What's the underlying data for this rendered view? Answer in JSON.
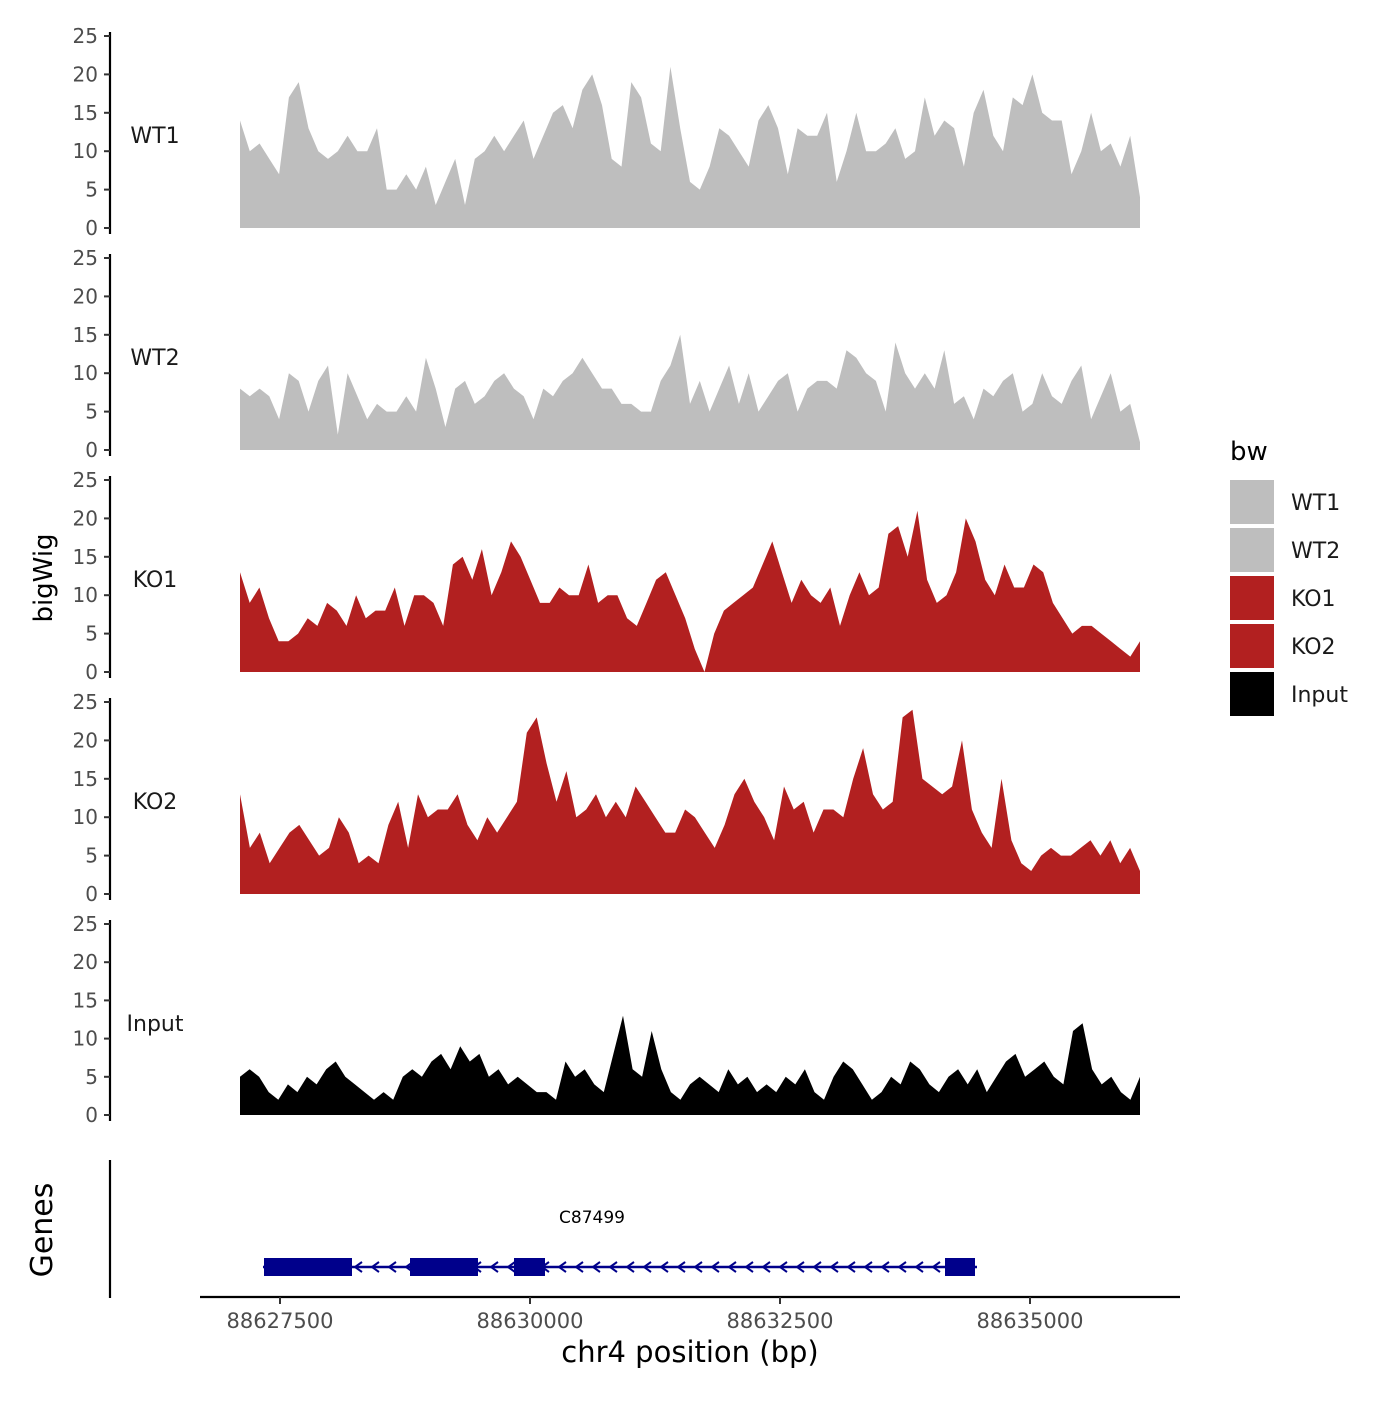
{
  "chart_data": {
    "type": "area",
    "y_axis_label": "bigWig",
    "x_axis_label": "chr4 position (bp)",
    "gene_track_label": "Genes",
    "legend_title": "bw",
    "x_range": [
      88626700,
      88636500
    ],
    "x_ticks": [
      88627500,
      88630000,
      88632500,
      88635000
    ],
    "x_tick_labels": [
      "88627500",
      "88630000",
      "88632500",
      "88635000"
    ],
    "y_range": [
      0,
      25
    ],
    "y_ticks": [
      0,
      5,
      10,
      15,
      20,
      25
    ],
    "y_tick_labels": [
      "0",
      "5",
      "10",
      "15",
      "20",
      "25"
    ],
    "signal_x_start": 88627100,
    "signal_x_end": 88636100,
    "tracks": [
      {
        "name": "WT1",
        "color": "#bebebe",
        "values": [
          14,
          10,
          11,
          9,
          7,
          17,
          19,
          13,
          10,
          9,
          10,
          12,
          10,
          10,
          13,
          5,
          5,
          7,
          5,
          8,
          3,
          6,
          9,
          3,
          9,
          10,
          12,
          10,
          12,
          14,
          9,
          12,
          15,
          16,
          13,
          18,
          20,
          16,
          9,
          8,
          19,
          17,
          11,
          10,
          21,
          13,
          6,
          5,
          8,
          13,
          12,
          10,
          8,
          14,
          16,
          13,
          7,
          13,
          12,
          12,
          15,
          6,
          10,
          15,
          10,
          10,
          11,
          13,
          9,
          10,
          17,
          12,
          14,
          13,
          8,
          15,
          18,
          12,
          10,
          17,
          16,
          20,
          15,
          14,
          14,
          7,
          10,
          15,
          10,
          11,
          8,
          12,
          4
        ]
      },
      {
        "name": "WT2",
        "color": "#bebebe",
        "values": [
          8,
          7,
          8,
          7,
          4,
          10,
          9,
          5,
          9,
          11,
          2,
          10,
          7,
          4,
          6,
          5,
          5,
          7,
          5,
          12,
          8,
          3,
          8,
          9,
          6,
          7,
          9,
          10,
          8,
          7,
          4,
          8,
          7,
          9,
          10,
          12,
          10,
          8,
          8,
          6,
          6,
          5,
          5,
          9,
          11,
          15,
          6,
          9,
          5,
          8,
          11,
          6,
          10,
          5,
          7,
          9,
          10,
          5,
          8,
          9,
          9,
          8,
          13,
          12,
          10,
          9,
          5,
          14,
          10,
          8,
          10,
          8,
          13,
          6,
          7,
          4,
          8,
          7,
          9,
          10,
          5,
          6,
          10,
          7,
          6,
          9,
          11,
          4,
          7,
          10,
          5,
          6,
          1
        ]
      },
      {
        "name": "KO1",
        "color": "#b22020",
        "values": [
          13,
          9,
          11,
          7,
          4,
          4,
          5,
          7,
          6,
          9,
          8,
          6,
          10,
          7,
          8,
          8,
          11,
          6,
          10,
          10,
          9,
          6,
          14,
          15,
          12,
          16,
          10,
          13,
          17,
          15,
          12,
          9,
          9,
          11,
          10,
          10,
          14,
          9,
          10,
          10,
          7,
          6,
          9,
          12,
          13,
          10,
          7,
          3,
          0,
          5,
          8,
          9,
          10,
          11,
          14,
          17,
          13,
          9,
          12,
          10,
          9,
          11,
          6,
          10,
          13,
          10,
          11,
          18,
          19,
          15,
          21,
          12,
          9,
          10,
          13,
          20,
          17,
          12,
          10,
          14,
          11,
          11,
          14,
          13,
          9,
          7,
          5,
          6,
          6,
          5,
          4,
          3,
          2,
          4
        ]
      },
      {
        "name": "KO2",
        "color": "#b22020",
        "values": [
          13,
          6,
          8,
          4,
          6,
          8,
          9,
          7,
          5,
          6,
          10,
          8,
          4,
          5,
          4,
          9,
          12,
          6,
          13,
          10,
          11,
          11,
          13,
          9,
          7,
          10,
          8,
          10,
          12,
          21,
          23,
          17,
          12,
          16,
          10,
          11,
          13,
          10,
          12,
          10,
          14,
          12,
          10,
          8,
          8,
          11,
          10,
          8,
          6,
          9,
          13,
          15,
          12,
          10,
          7,
          14,
          11,
          12,
          8,
          11,
          11,
          10,
          15,
          19,
          13,
          11,
          12,
          23,
          24,
          15,
          14,
          13,
          14,
          20,
          11,
          8,
          6,
          15,
          7,
          4,
          3,
          5,
          6,
          5,
          5,
          6,
          7,
          5,
          7,
          4,
          6,
          3
        ]
      },
      {
        "name": "Input",
        "color": "#000000",
        "values": [
          5,
          6,
          5,
          3,
          2,
          4,
          3,
          5,
          4,
          6,
          7,
          5,
          4,
          3,
          2,
          3,
          2,
          5,
          6,
          5,
          7,
          8,
          6,
          9,
          7,
          8,
          5,
          6,
          4,
          5,
          4,
          3,
          3,
          2,
          7,
          5,
          6,
          4,
          3,
          8,
          13,
          6,
          5,
          11,
          6,
          3,
          2,
          4,
          5,
          4,
          3,
          6,
          4,
          5,
          3,
          4,
          3,
          5,
          4,
          6,
          3,
          2,
          5,
          7,
          6,
          4,
          2,
          3,
          5,
          4,
          7,
          6,
          4,
          3,
          5,
          6,
          4,
          6,
          3,
          5,
          7,
          8,
          5,
          6,
          7,
          5,
          4,
          11,
          12,
          6,
          4,
          5,
          3,
          2,
          5
        ]
      }
    ],
    "gene": {
      "name": "C87499",
      "strand": "-",
      "color": "#00008b",
      "start": 88627330,
      "end": 88634470,
      "exons": [
        [
          88627340,
          88628220
        ],
        [
          88628800,
          88629480
        ],
        [
          88629840,
          88630150
        ],
        [
          88634150,
          88634450
        ]
      ]
    }
  }
}
